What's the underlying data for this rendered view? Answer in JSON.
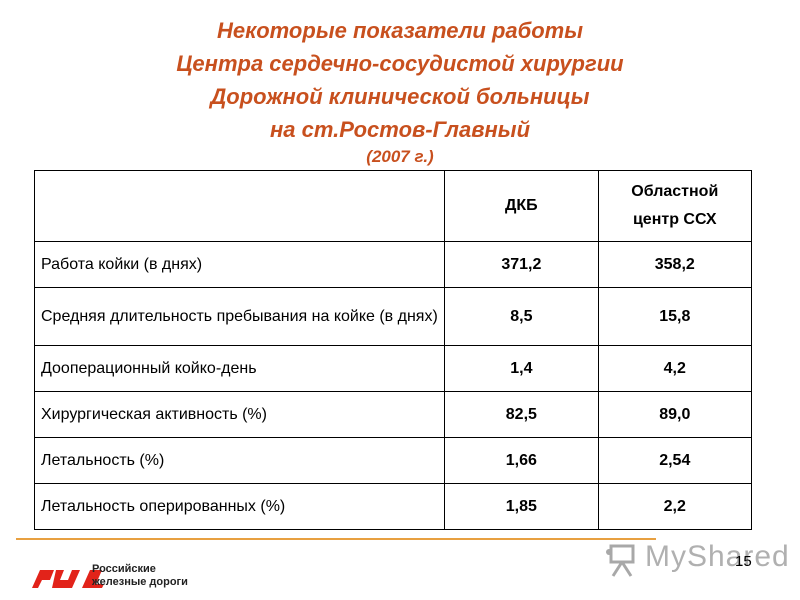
{
  "title": {
    "line1": "Некоторые показатели работы",
    "line2": "Центра сердечно-сосудистой хирургии",
    "line3": "Дорожной клинической больницы",
    "line4": "на ст.Ростов-Главный",
    "year": "(2007 г.)"
  },
  "table": {
    "headers": [
      "",
      "ДКБ",
      "Областной центр ССХ"
    ],
    "rows": [
      {
        "label": "Работа койки (в днях)",
        "dkb": "371,2",
        "occh": "358,2"
      },
      {
        "label": "Средняя  длительность пребывания на койке (в днях)",
        "dkb": "8,5",
        "occh": "15,8"
      },
      {
        "label": "Дооперационный койко-день",
        "dkb": "1,4",
        "occh": "4,2"
      },
      {
        "label": "Хирургическая активность (%)",
        "dkb": "82,5",
        "occh": "89,0"
      },
      {
        "label": "Летальность (%)",
        "dkb": "1,66",
        "occh": "2,54"
      },
      {
        "label": "Летальность оперированных (%)",
        "dkb": "1,85",
        "occh": "2,2"
      }
    ]
  },
  "footer": {
    "logo_line1": "Российские",
    "logo_line2": "железные дороги",
    "logo_color": "#e2231a",
    "watermark": "MyShared",
    "page_number": "15",
    "accent_line_color": "#e8a040"
  }
}
